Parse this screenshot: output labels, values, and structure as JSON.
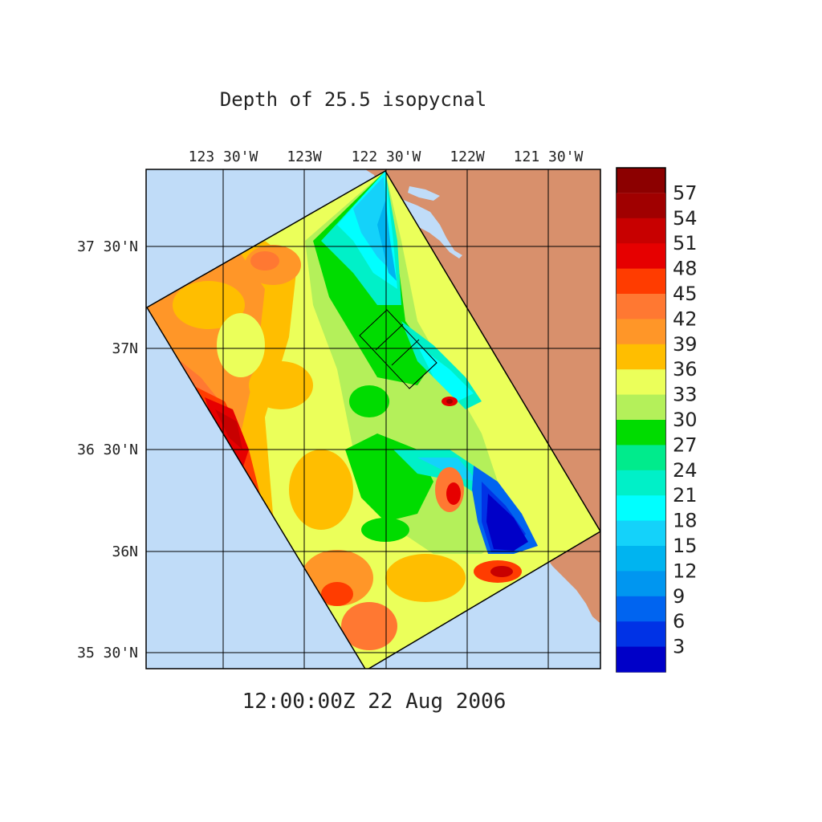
{
  "title": "Depth of 25.5 isopycnal",
  "timestamp": "12:00:00Z  22 Aug 2006",
  "lon_labels": [
    "123 30'W",
    "123W",
    "122 30'W",
    "122W",
    "121 30'W"
  ],
  "lat_labels": [
    "37 30'N",
    "37N",
    "36 30'N",
    "36N",
    "35 30'N"
  ],
  "colorbar": {
    "labels": [
      "57",
      "54",
      "51",
      "48",
      "45",
      "42",
      "39",
      "36",
      "33",
      "30",
      "27",
      "24",
      "21",
      "18",
      "15",
      "12",
      "9",
      "6",
      "3"
    ],
    "colors": [
      "#a00000",
      "#c80000",
      "#e60000",
      "#ff3c00",
      "#ff7832",
      "#ff9628",
      "#ffbe00",
      "#ebff5a",
      "#b4f05a",
      "#00dc00",
      "#00eb8c",
      "#00f0c8",
      "#00ffff",
      "#14d2fa",
      "#00b4f0",
      "#0096f0",
      "#0064f0",
      "#0032e6",
      "#0000c8"
    ]
  },
  "colors": {
    "ocean": "#c0dcf8",
    "land": "#d8906c",
    "grid": "#000000"
  }
}
